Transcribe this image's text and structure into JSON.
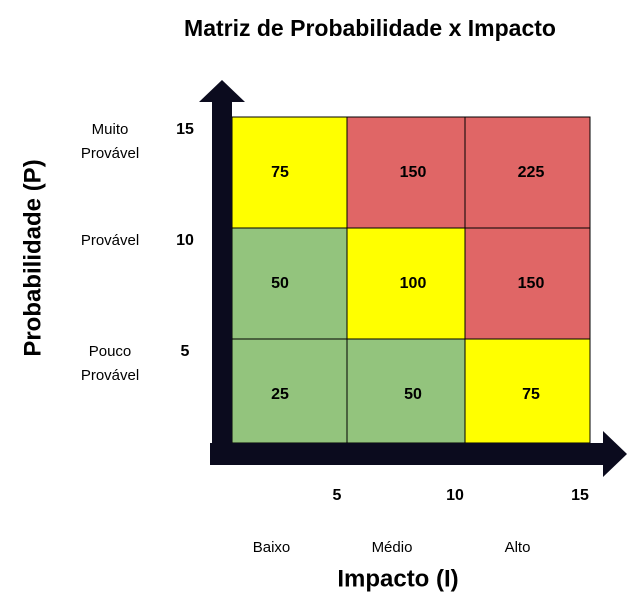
{
  "title": "Matriz de Probabilidade x Impacto",
  "y_axis": {
    "title": "Probabilidade (P)",
    "levels": [
      {
        "label": [
          "Muito",
          "Provável"
        ],
        "value": 15
      },
      {
        "label": [
          "Provável"
        ],
        "value": 10
      },
      {
        "label": [
          "Pouco",
          "Provável"
        ],
        "value": 5
      }
    ]
  },
  "x_axis": {
    "title": "Impacto (I)",
    "levels": [
      {
        "label": "Baixo",
        "value": 5
      },
      {
        "label": "Médio",
        "value": 10
      },
      {
        "label": "Alto",
        "value": 15
      }
    ]
  },
  "matrix": {
    "rows": [
      [
        {
          "value": 75,
          "color": "#ffff00"
        },
        {
          "value": 150,
          "color": "#e06666"
        },
        {
          "value": 225,
          "color": "#e06666"
        }
      ],
      [
        {
          "value": 50,
          "color": "#93c47d"
        },
        {
          "value": 100,
          "color": "#ffff00"
        },
        {
          "value": 150,
          "color": "#e06666"
        }
      ],
      [
        {
          "value": 25,
          "color": "#93c47d"
        },
        {
          "value": 50,
          "color": "#93c47d"
        },
        {
          "value": 75,
          "color": "#ffff00"
        }
      ]
    ]
  }
}
